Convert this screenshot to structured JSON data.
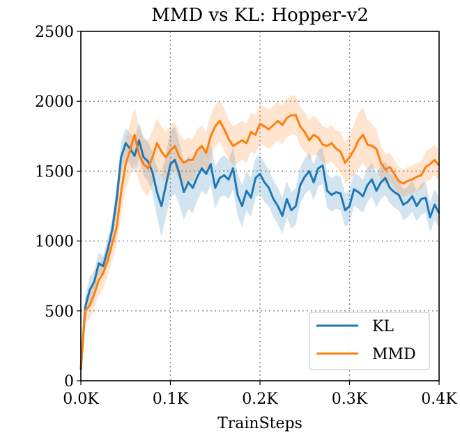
{
  "chart_data": {
    "type": "line",
    "title": "MMD vs KL: Hopper-v2",
    "xlabel": "TrainSteps",
    "ylabel": "",
    "xlim": [
      0,
      0.4
    ],
    "ylim": [
      0,
      2500
    ],
    "xticks": [
      0,
      0.1,
      0.2,
      0.3,
      0.4
    ],
    "xtick_labels": [
      "0.0K",
      "0.1K",
      "0.2K",
      "0.3K",
      "0.4K"
    ],
    "yticks": [
      0,
      500,
      1000,
      1500,
      2000,
      2500
    ],
    "ytick_labels": [
      "0",
      "500",
      "1000",
      "1500",
      "2000",
      "2500"
    ],
    "grid": true,
    "legend_position": "lower-right",
    "series": [
      {
        "name": "KL",
        "color": "#1f77b4",
        "x": [
          0,
          0.005,
          0.01,
          0.015,
          0.02,
          0.025,
          0.03,
          0.035,
          0.04,
          0.045,
          0.05,
          0.055,
          0.06,
          0.065,
          0.07,
          0.075,
          0.08,
          0.085,
          0.09,
          0.095,
          0.1,
          0.105,
          0.11,
          0.115,
          0.12,
          0.125,
          0.13,
          0.135,
          0.14,
          0.145,
          0.15,
          0.155,
          0.16,
          0.165,
          0.17,
          0.175,
          0.18,
          0.185,
          0.19,
          0.195,
          0.2,
          0.205,
          0.21,
          0.215,
          0.22,
          0.225,
          0.23,
          0.235,
          0.24,
          0.245,
          0.25,
          0.255,
          0.26,
          0.265,
          0.27,
          0.275,
          0.28,
          0.285,
          0.29,
          0.295,
          0.3,
          0.305,
          0.31,
          0.315,
          0.32,
          0.325,
          0.33,
          0.335,
          0.34,
          0.345,
          0.35,
          0.355,
          0.36,
          0.365,
          0.37,
          0.375,
          0.38,
          0.385,
          0.39,
          0.395,
          0.4
        ],
        "y": [
          80,
          530,
          650,
          710,
          840,
          820,
          940,
          1080,
          1300,
          1600,
          1700,
          1660,
          1610,
          1720,
          1600,
          1570,
          1490,
          1350,
          1250,
          1400,
          1550,
          1580,
          1480,
          1350,
          1420,
          1380,
          1460,
          1520,
          1480,
          1550,
          1380,
          1450,
          1470,
          1440,
          1520,
          1330,
          1250,
          1360,
          1310,
          1450,
          1480,
          1420,
          1380,
          1300,
          1250,
          1180,
          1300,
          1220,
          1250,
          1400,
          1460,
          1500,
          1420,
          1520,
          1540,
          1360,
          1330,
          1350,
          1340,
          1220,
          1250,
          1370,
          1350,
          1320,
          1400,
          1440,
          1360,
          1420,
          1450,
          1380,
          1350,
          1330,
          1260,
          1280,
          1320,
          1250,
          1300,
          1310,
          1170,
          1260,
          1200
        ],
        "band": [
          20,
          80,
          90,
          80,
          80,
          70,
          80,
          80,
          100,
          110,
          110,
          110,
          120,
          130,
          130,
          140,
          150,
          180,
          220,
          230,
          240,
          240,
          220,
          200,
          190,
          180,
          170,
          160,
          150,
          150,
          150,
          140,
          140,
          140,
          150,
          150,
          150,
          140,
          140,
          140,
          140,
          140,
          130,
          130,
          130,
          130,
          130,
          130,
          130,
          130,
          130,
          130,
          130,
          130,
          130,
          120,
          120,
          120,
          120,
          120,
          120,
          120,
          120,
          120,
          120,
          120,
          120,
          120,
          120,
          110,
          110,
          110,
          110,
          110,
          110,
          110,
          110,
          110,
          110,
          110,
          110
        ]
      },
      {
        "name": "MMD",
        "color": "#ff7f0e",
        "x": [
          0,
          0.005,
          0.01,
          0.015,
          0.02,
          0.025,
          0.03,
          0.035,
          0.04,
          0.045,
          0.05,
          0.055,
          0.06,
          0.065,
          0.07,
          0.075,
          0.08,
          0.085,
          0.09,
          0.095,
          0.1,
          0.105,
          0.11,
          0.115,
          0.12,
          0.125,
          0.13,
          0.135,
          0.14,
          0.145,
          0.15,
          0.155,
          0.16,
          0.165,
          0.17,
          0.175,
          0.18,
          0.185,
          0.19,
          0.195,
          0.2,
          0.205,
          0.21,
          0.215,
          0.22,
          0.225,
          0.23,
          0.235,
          0.24,
          0.245,
          0.25,
          0.255,
          0.26,
          0.265,
          0.27,
          0.275,
          0.28,
          0.285,
          0.29,
          0.295,
          0.3,
          0.305,
          0.31,
          0.315,
          0.32,
          0.325,
          0.33,
          0.335,
          0.34,
          0.345,
          0.35,
          0.355,
          0.36,
          0.365,
          0.37,
          0.375,
          0.38,
          0.385,
          0.39,
          0.395,
          0.4
        ],
        "y": [
          90,
          500,
          540,
          620,
          720,
          770,
          860,
          980,
          1100,
          1350,
          1550,
          1650,
          1760,
          1620,
          1550,
          1520,
          1600,
          1700,
          1640,
          1600,
          1650,
          1680,
          1600,
          1560,
          1580,
          1580,
          1650,
          1680,
          1630,
          1750,
          1820,
          1860,
          1800,
          1730,
          1680,
          1700,
          1720,
          1700,
          1780,
          1760,
          1840,
          1820,
          1800,
          1830,
          1860,
          1830,
          1880,
          1900,
          1900,
          1820,
          1780,
          1720,
          1760,
          1740,
          1690,
          1680,
          1700,
          1660,
          1640,
          1560,
          1600,
          1650,
          1720,
          1760,
          1690,
          1680,
          1660,
          1560,
          1510,
          1530,
          1480,
          1430,
          1410,
          1430,
          1440,
          1460,
          1470,
          1530,
          1550,
          1580,
          1540
        ],
        "band": [
          30,
          90,
          100,
          100,
          110,
          110,
          110,
          120,
          140,
          160,
          180,
          190,
          200,
          200,
          200,
          200,
          190,
          180,
          180,
          180,
          180,
          170,
          170,
          160,
          160,
          150,
          150,
          150,
          150,
          150,
          150,
          150,
          150,
          140,
          140,
          140,
          140,
          140,
          140,
          140,
          140,
          140,
          140,
          140,
          140,
          140,
          140,
          140,
          140,
          140,
          140,
          140,
          140,
          130,
          130,
          130,
          130,
          130,
          140,
          150,
          160,
          180,
          200,
          200,
          180,
          160,
          140,
          120,
          110,
          100,
          100,
          100,
          100,
          100,
          100,
          100,
          100,
          110,
          110,
          110,
          110
        ]
      }
    ]
  }
}
